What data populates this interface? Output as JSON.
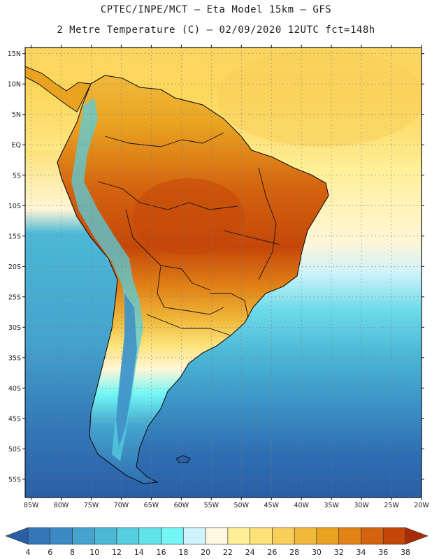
{
  "header": {
    "line1": "CPTEC/INPE/MCT –  Eta Model 15km – GFS",
    "line2": "2 Metre Temperature (C) – 02/09/2020 12UTC fct=148h"
  },
  "map": {
    "lat_labels": [
      "15N",
      "10N",
      "5N",
      "EQ",
      "5S",
      "10S",
      "15S",
      "20S",
      "25S",
      "30S",
      "35S",
      "40S",
      "45S",
      "50S",
      "55S"
    ],
    "lon_labels": [
      "85W",
      "80W",
      "75W",
      "70W",
      "65W",
      "60W",
      "55W",
      "50W",
      "45W",
      "40W",
      "35W",
      "30W",
      "25W",
      "20W"
    ],
    "extent": {
      "lon": [
        -86,
        -20
      ],
      "lat": [
        -58,
        16
      ]
    }
  },
  "colorbar": {
    "levels": [
      "4",
      "6",
      "8",
      "10",
      "12",
      "14",
      "16",
      "18",
      "20",
      "22",
      "24",
      "26",
      "28",
      "30",
      "32",
      "34",
      "36",
      "38"
    ],
    "colors": [
      "#2a5fa6",
      "#3377b8",
      "#3b8ac4",
      "#45a3cd",
      "#4cb8d6",
      "#55cfe0",
      "#62e3ea",
      "#73f6f6",
      "#cff3fb",
      "#fff7e0",
      "#fff098",
      "#fde27a",
      "#f8cf5a",
      "#f0b93c",
      "#e9a321",
      "#e18317",
      "#d4620e",
      "#c44709",
      "#a82c06"
    ]
  }
}
